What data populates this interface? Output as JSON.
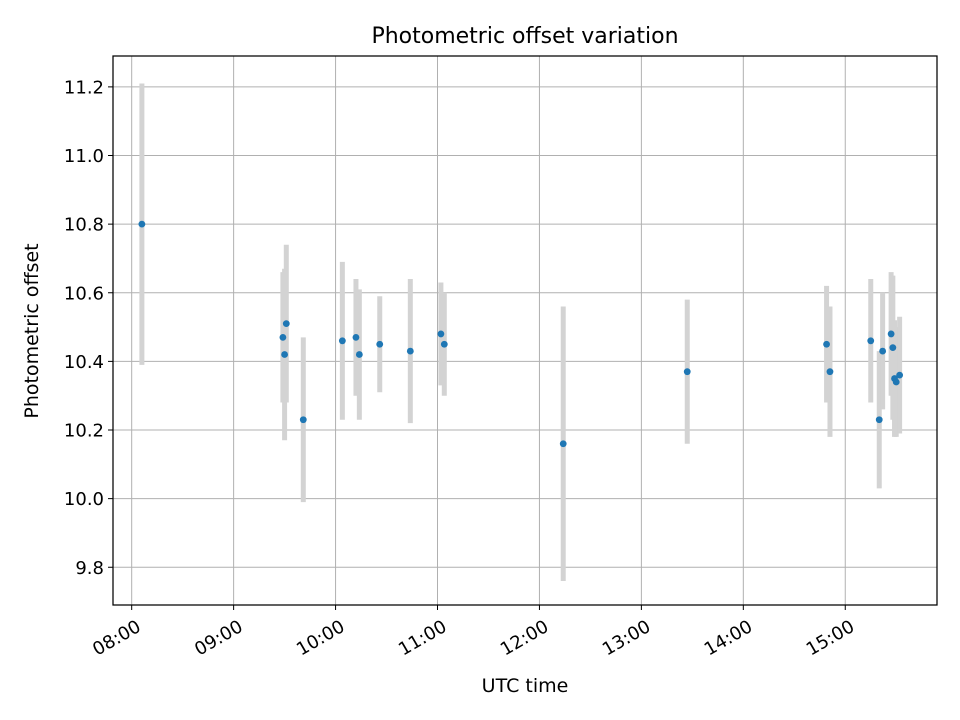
{
  "chart_data": {
    "type": "scatter",
    "title": "Photometric offset variation",
    "xlabel": "UTC time",
    "ylabel": "Photometric offset",
    "x_tick_labels": [
      "08:00",
      "09:00",
      "10:00",
      "11:00",
      "12:00",
      "13:00",
      "14:00",
      "15:00"
    ],
    "y_ticks": [
      9.8,
      10.0,
      10.2,
      10.4,
      10.6,
      10.8,
      11.0,
      11.2
    ],
    "y_tick_labels": [
      "9.8",
      "10.0",
      "10.2",
      "10.4",
      "10.6",
      "10.8",
      "11.0",
      "11.2"
    ],
    "xlim": [
      "07:49",
      "15:54"
    ],
    "ylim": [
      9.69,
      11.29
    ],
    "grid": true,
    "marker_color": "#1f77b4",
    "errorbar_color": "#d3d3d3",
    "series": [
      {
        "points": [
          {
            "x": "08:06",
            "y": 10.8,
            "err": 0.41
          },
          {
            "x": "09:29",
            "y": 10.47,
            "err": 0.19
          },
          {
            "x": "09:30",
            "y": 10.42,
            "err": 0.25
          },
          {
            "x": "09:31",
            "y": 10.51,
            "err": 0.23
          },
          {
            "x": "09:41",
            "y": 10.23,
            "err": 0.24
          },
          {
            "x": "10:04",
            "y": 10.46,
            "err": 0.23
          },
          {
            "x": "10:12",
            "y": 10.47,
            "err": 0.17
          },
          {
            "x": "10:14",
            "y": 10.42,
            "err": 0.19
          },
          {
            "x": "10:26",
            "y": 10.45,
            "err": 0.14
          },
          {
            "x": "10:44",
            "y": 10.43,
            "err": 0.21
          },
          {
            "x": "11:02",
            "y": 10.48,
            "err": 0.15
          },
          {
            "x": "11:04",
            "y": 10.45,
            "err": 0.15
          },
          {
            "x": "12:14",
            "y": 10.16,
            "err": 0.4
          },
          {
            "x": "13:27",
            "y": 10.37,
            "err": 0.21
          },
          {
            "x": "14:49",
            "y": 10.45,
            "err": 0.17
          },
          {
            "x": "14:51",
            "y": 10.37,
            "err": 0.19
          },
          {
            "x": "15:15",
            "y": 10.46,
            "err": 0.18
          },
          {
            "x": "15:20",
            "y": 10.23,
            "err": 0.2
          },
          {
            "x": "15:22",
            "y": 10.43,
            "err": 0.17
          },
          {
            "x": "15:27",
            "y": 10.48,
            "err": 0.18
          },
          {
            "x": "15:28",
            "y": 10.44,
            "err": 0.21
          },
          {
            "x": "15:29",
            "y": 10.35,
            "err": 0.17
          },
          {
            "x": "15:30",
            "y": 10.34,
            "err": 0.16
          },
          {
            "x": "15:32",
            "y": 10.36,
            "err": 0.17
          }
        ]
      }
    ]
  }
}
